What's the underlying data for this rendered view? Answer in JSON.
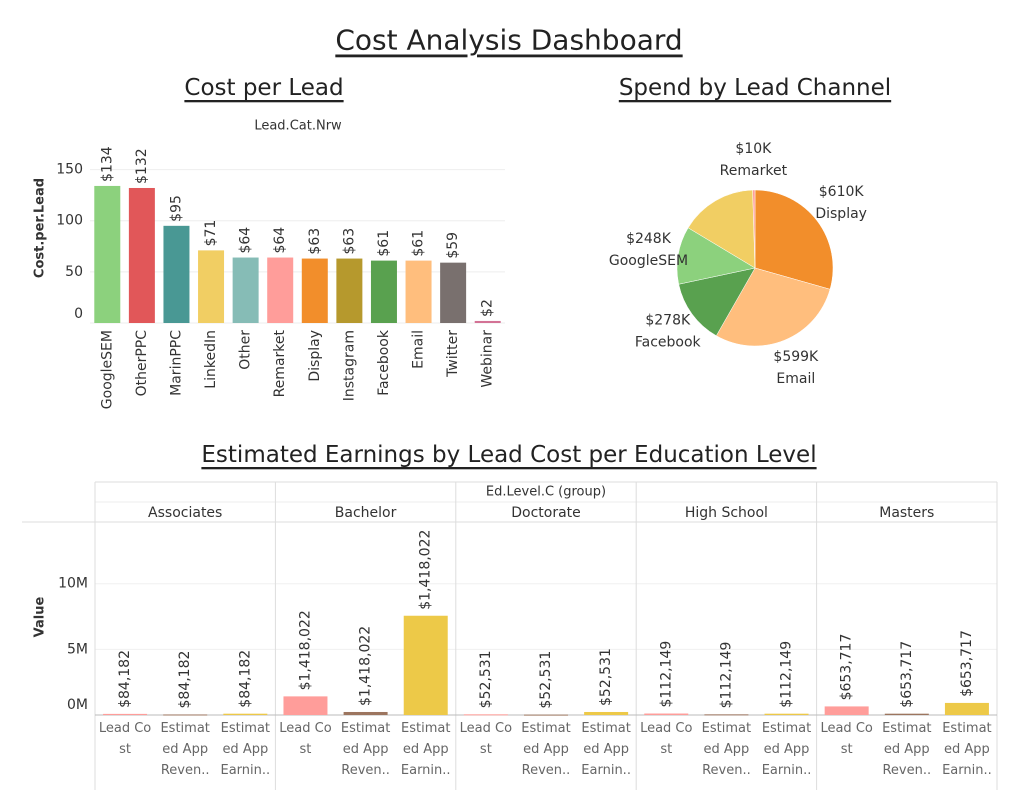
{
  "title": "Cost Analysis Dashboard",
  "chart_data": [
    {
      "type": "bar",
      "title": "Cost per Lead",
      "x_label": "Lead.Cat.Nrw",
      "y_label": "Cost.per.Lead",
      "categories": [
        "GoogleSEM",
        "OtherPPC",
        "MarinPPC",
        "LinkedIn",
        "Other",
        "Remarket",
        "Display",
        "Instagram",
        "Facebook",
        "Email",
        "Twitter",
        "Webinar"
      ],
      "values": [
        134,
        132,
        95,
        71,
        64,
        64,
        63,
        63,
        61,
        61,
        59,
        2
      ],
      "value_labels": [
        "$134",
        "$132",
        "$95",
        "$71",
        "$64",
        "$64",
        "$63",
        "$63",
        "$61",
        "$61",
        "$59",
        "$2"
      ],
      "colors": [
        "#8cd17d",
        "#e15759",
        "#499894",
        "#f1ce63",
        "#86bcb6",
        "#ff9d9a",
        "#f28e2b",
        "#b6992d",
        "#59a14f",
        "#ffbe7d",
        "#79706e",
        "#d37295"
      ],
      "ylim": [
        0,
        175
      ],
      "yticks": [
        0,
        50,
        100,
        150
      ],
      "grid": true
    },
    {
      "type": "pie",
      "title": "Spend by Lead Channel",
      "categories": [
        "Display",
        "Email",
        "Facebook",
        "GoogleSEM",
        null,
        "Remarket"
      ],
      "values": [
        610000,
        599000,
        278000,
        248000,
        330000,
        10000
      ],
      "value_labels": [
        "$610K",
        "$599K",
        "$278K",
        "$248K",
        null,
        "$10K"
      ],
      "colors": [
        "#f28e2b",
        "#ffbe7d",
        "#59a14f",
        "#8cd17d",
        "#f1ce63",
        "#ff9d9a"
      ]
    },
    {
      "type": "grouped_bar",
      "title": "Estimated Earnings by Lead Cost per Education Level",
      "x_label": "Ed.Level.C (group)",
      "y_label": "Value",
      "categories": [
        "Associates",
        "Bachelor",
        "Doctorate",
        "High School",
        "Masters"
      ],
      "series": [
        {
          "name": "Lead Cost",
          "color": "#ff9d9a",
          "values": [
            84182,
            1418022,
            52531,
            112149,
            653717
          ],
          "value_labels": [
            "$84,182",
            "$1,418,022",
            "$52,531",
            "$112,149",
            "$653,717"
          ]
        },
        {
          "name": "Estimated App Reven..",
          "color": "#9c755f",
          "values": [
            40000,
            230000,
            30000,
            50000,
            100000
          ]
        },
        {
          "name": "Estimated App Earnin..",
          "color": "#edc948",
          "values": [
            100000,
            7560000,
            230000,
            100000,
            920000
          ]
        }
      ],
      "ylim": [
        0,
        14700000
      ],
      "yticks": [
        {
          "value": 0,
          "label": "0M"
        },
        {
          "value": 5000000,
          "label": "5M"
        },
        {
          "value": 10000000,
          "label": "10M"
        }
      ],
      "grid": true
    }
  ]
}
